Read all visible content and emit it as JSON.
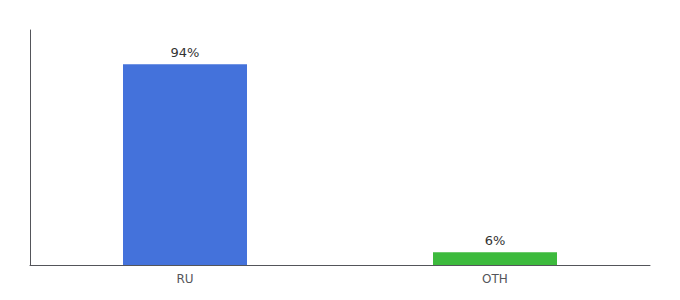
{
  "chart_data": {
    "type": "bar",
    "categories": [
      "RU",
      "OTH"
    ],
    "values": [
      94,
      6
    ],
    "value_labels": [
      "94%",
      "6%"
    ],
    "colors": [
      "#4472db",
      "#3dba3d"
    ],
    "ylim": [
      0,
      110
    ],
    "data_labels": true,
    "tick_labels": "x",
    "grid": false
  }
}
